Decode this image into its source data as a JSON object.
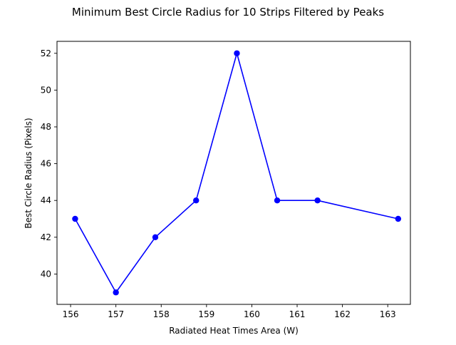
{
  "chart_data": {
    "type": "line",
    "title": "Minimum Best Circle Radius for 10 Strips Filtered by Peaks",
    "xlabel": "Radiated Heat Times Area (W)",
    "ylabel": "Best Circle Radius (Pixels)",
    "xlim": [
      155.7,
      163.5
    ],
    "ylim": [
      38.35,
      52.65
    ],
    "xticks": [
      156,
      157,
      158,
      159,
      160,
      161,
      162,
      163
    ],
    "yticks": [
      40,
      42,
      44,
      46,
      48,
      50,
      52
    ],
    "grid": false,
    "legend": "none",
    "series": [
      {
        "color": "#0000ff",
        "marker": "circle",
        "points": [
          {
            "x": 156.1,
            "y": 43
          },
          {
            "x": 157.0,
            "y": 39
          },
          {
            "x": 157.87,
            "y": 42
          },
          {
            "x": 158.77,
            "y": 44
          },
          {
            "x": 159.67,
            "y": 52
          },
          {
            "x": 160.56,
            "y": 44
          },
          {
            "x": 161.45,
            "y": 44
          },
          {
            "x": 163.23,
            "y": 43
          }
        ]
      }
    ]
  }
}
